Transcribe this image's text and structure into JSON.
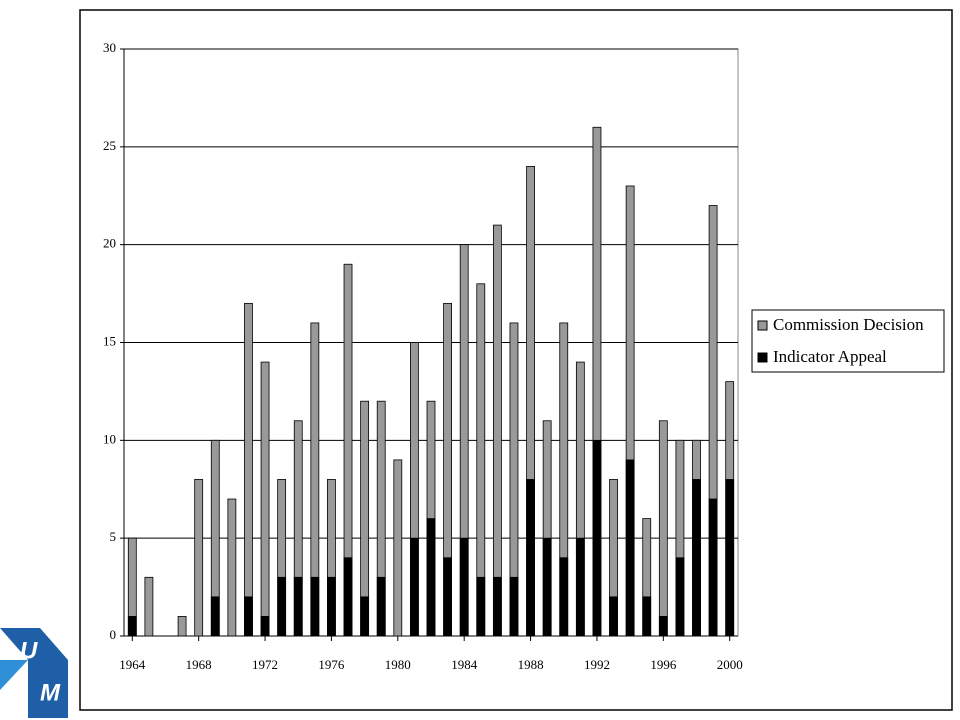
{
  "chart_data": {
    "type": "bar",
    "x": [
      1964,
      1965,
      1966,
      1967,
      1968,
      1969,
      1970,
      1971,
      1972,
      1973,
      1974,
      1975,
      1976,
      1977,
      1978,
      1979,
      1980,
      1981,
      1982,
      1983,
      1984,
      1985,
      1986,
      1987,
      1988,
      1989,
      1990,
      1991,
      1992,
      1993,
      1994,
      1995,
      1996,
      1997,
      1998,
      1999,
      2000
    ],
    "series": [
      {
        "name": "Commission Decision",
        "color": "#999999",
        "values": [
          5,
          3,
          0,
          1,
          8,
          10,
          7,
          17,
          14,
          8,
          11,
          16,
          8,
          19,
          12,
          12,
          9,
          15,
          12,
          17,
          20,
          18,
          21,
          16,
          24,
          11,
          16,
          14,
          26,
          8,
          23,
          6,
          11,
          10,
          10,
          22,
          13
        ]
      },
      {
        "name": "Indicator Appeal",
        "color": "#000000",
        "values": [
          1,
          0,
          0,
          0,
          0,
          2,
          0,
          2,
          1,
          3,
          3,
          3,
          3,
          4,
          2,
          3,
          0,
          5,
          6,
          4,
          5,
          3,
          3,
          3,
          8,
          5,
          4,
          5,
          10,
          2,
          9,
          2,
          1,
          4,
          8,
          7,
          8
        ]
      }
    ],
    "xlim": [
      1963.5,
      2000.5
    ],
    "xticks": [
      1964,
      1968,
      1972,
      1976,
      1980,
      1984,
      1988,
      1992,
      1996,
      2000
    ],
    "ylim": [
      0,
      30
    ],
    "yticks": [
      0,
      5,
      10,
      15,
      20,
      25,
      30
    ],
    "grid": true,
    "legend": "right"
  },
  "logo": {
    "letters": [
      "U",
      "M"
    ]
  }
}
